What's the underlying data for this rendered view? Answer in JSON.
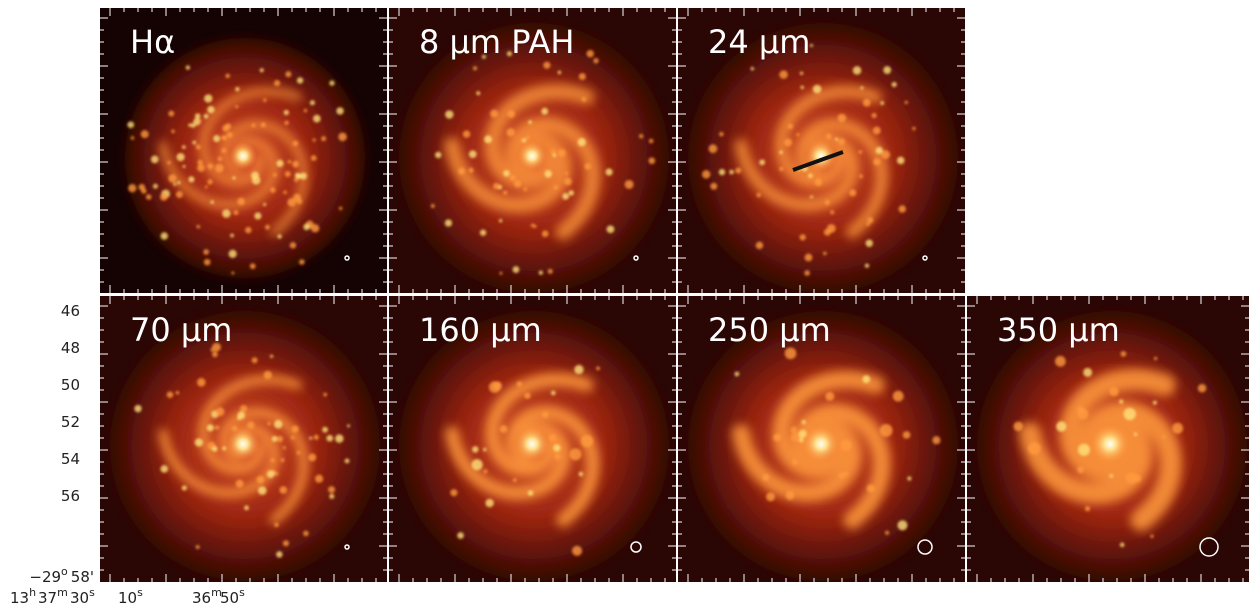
{
  "panels": [
    "Hα",
    "8 μm PAH",
    "24 μm",
    "70 μm",
    "160 μm",
    "250 μm",
    "350 μm"
  ],
  "y_axis": {
    "labels": [
      "46",
      "48",
      "50",
      "52",
      "54",
      "56"
    ],
    "last": {
      "base": "−29",
      "sup": "o",
      "rest": "58'"
    }
  },
  "x_axis": {
    "labels": [
      {
        "base": "13",
        "sup": "h"
      },
      {
        "base": "37",
        "sup": "m"
      },
      {
        "base": "30",
        "sup": "s"
      },
      {
        "base": "10",
        "sup": "s"
      },
      {
        "base": "36",
        "sup": "m"
      },
      {
        "base": "50",
        "sup": "s"
      }
    ]
  }
}
